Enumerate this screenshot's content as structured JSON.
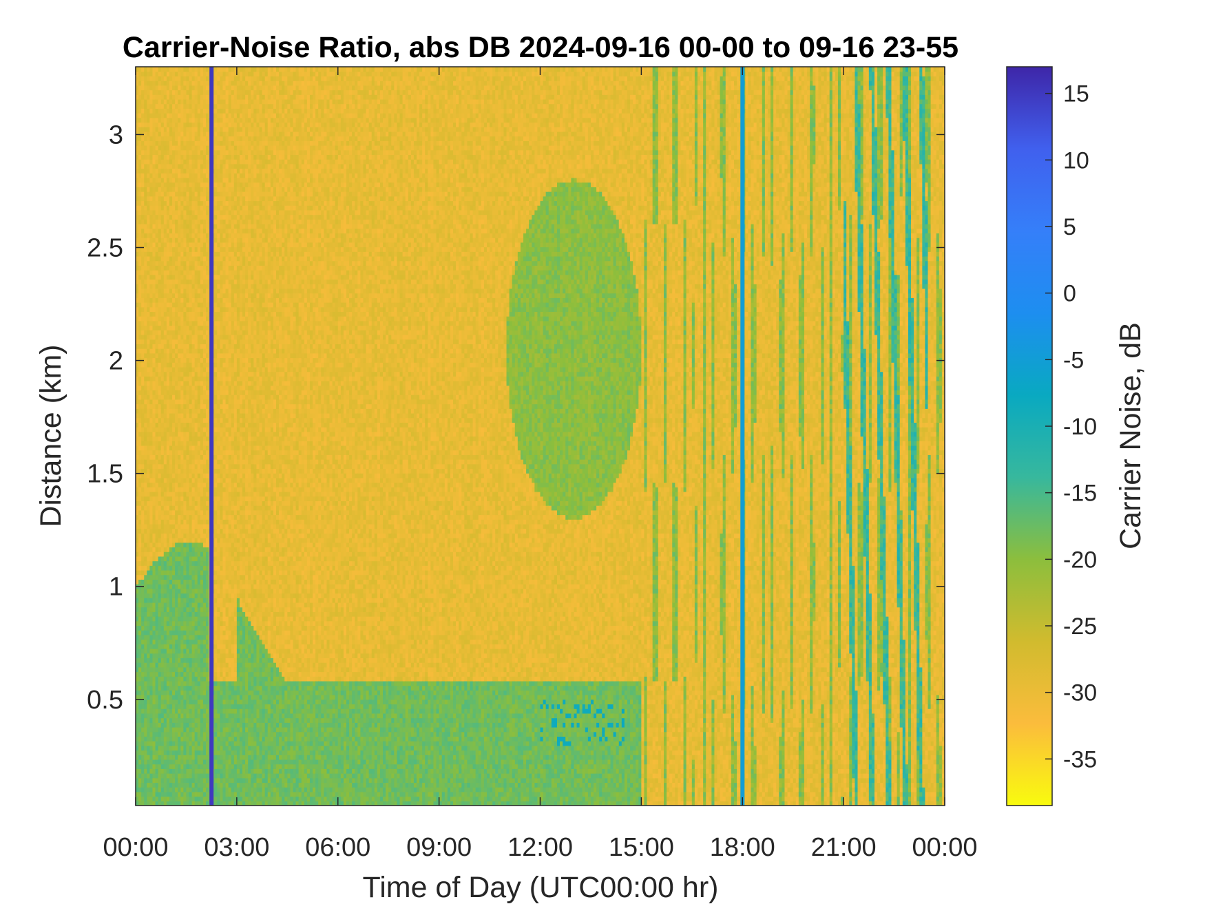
{
  "chart_data": {
    "type": "heatmap",
    "title": "Carrier-Noise Ratio, abs DB 2024-09-16 00-00 to 09-16 23-55",
    "xlabel": "Time of Day (UTC00:00 hr)",
    "ylabel": "Distance (km)",
    "x_range_hours": [
      0,
      24
    ],
    "y_range_km": [
      0.03,
      3.3
    ],
    "x_ticks": [
      {
        "value": 0,
        "label": "00:00"
      },
      {
        "value": 3,
        "label": "03:00"
      },
      {
        "value": 6,
        "label": "06:00"
      },
      {
        "value": 9,
        "label": "09:00"
      },
      {
        "value": 12,
        "label": "12:00"
      },
      {
        "value": 15,
        "label": "15:00"
      },
      {
        "value": 18,
        "label": "18:00"
      },
      {
        "value": 21,
        "label": "21:00"
      },
      {
        "value": 24,
        "label": "00:00"
      }
    ],
    "y_ticks": [
      {
        "value": 0.5,
        "label": "0.5"
      },
      {
        "value": 1,
        "label": "1"
      },
      {
        "value": 1.5,
        "label": "1.5"
      },
      {
        "value": 2,
        "label": "2"
      },
      {
        "value": 2.5,
        "label": "2.5"
      },
      {
        "value": 3,
        "label": "3"
      }
    ],
    "colorbar": {
      "label": "Carrier Noise, dB",
      "range": [
        -38.5,
        17
      ],
      "ticks": [
        {
          "value": 15,
          "label": "15"
        },
        {
          "value": 10,
          "label": "10"
        },
        {
          "value": 5,
          "label": "5"
        },
        {
          "value": 0,
          "label": "0"
        },
        {
          "value": -5,
          "label": "-5"
        },
        {
          "value": -10,
          "label": "-10"
        },
        {
          "value": -15,
          "label": "-15"
        },
        {
          "value": -20,
          "label": "-20"
        },
        {
          "value": -25,
          "label": "-25"
        },
        {
          "value": -30,
          "label": "-30"
        },
        {
          "value": -35,
          "label": "-35"
        }
      ],
      "colormap": "parula (reversed)",
      "stops": [
        "#f9fb0e",
        "#fbbc3c",
        "#d1bb2e",
        "#8cbe3d",
        "#37b89d",
        "#09a9c1",
        "#1d8ef0",
        "#357ff9",
        "#4060ee",
        "#3e26a8"
      ]
    },
    "features": [
      {
        "kind": "background",
        "description_value": -29
      },
      {
        "kind": "low_layer",
        "x_hours": [
          0,
          15
        ],
        "top_km_approx": 0.58,
        "value": -18
      },
      {
        "kind": "low_layer_cyan",
        "x_hours": [
          12,
          14.5
        ],
        "y_km": [
          0.3,
          0.5
        ],
        "value": -10
      },
      {
        "kind": "cloud_region",
        "x_hours": [
          11,
          15
        ],
        "y_km": [
          1.3,
          2.8
        ],
        "value": -20
      },
      {
        "kind": "stripe",
        "x_hours": 2.25,
        "value": 15
      },
      {
        "kind": "stripe",
        "x_hours": 18.0,
        "value": -5
      }
    ]
  }
}
